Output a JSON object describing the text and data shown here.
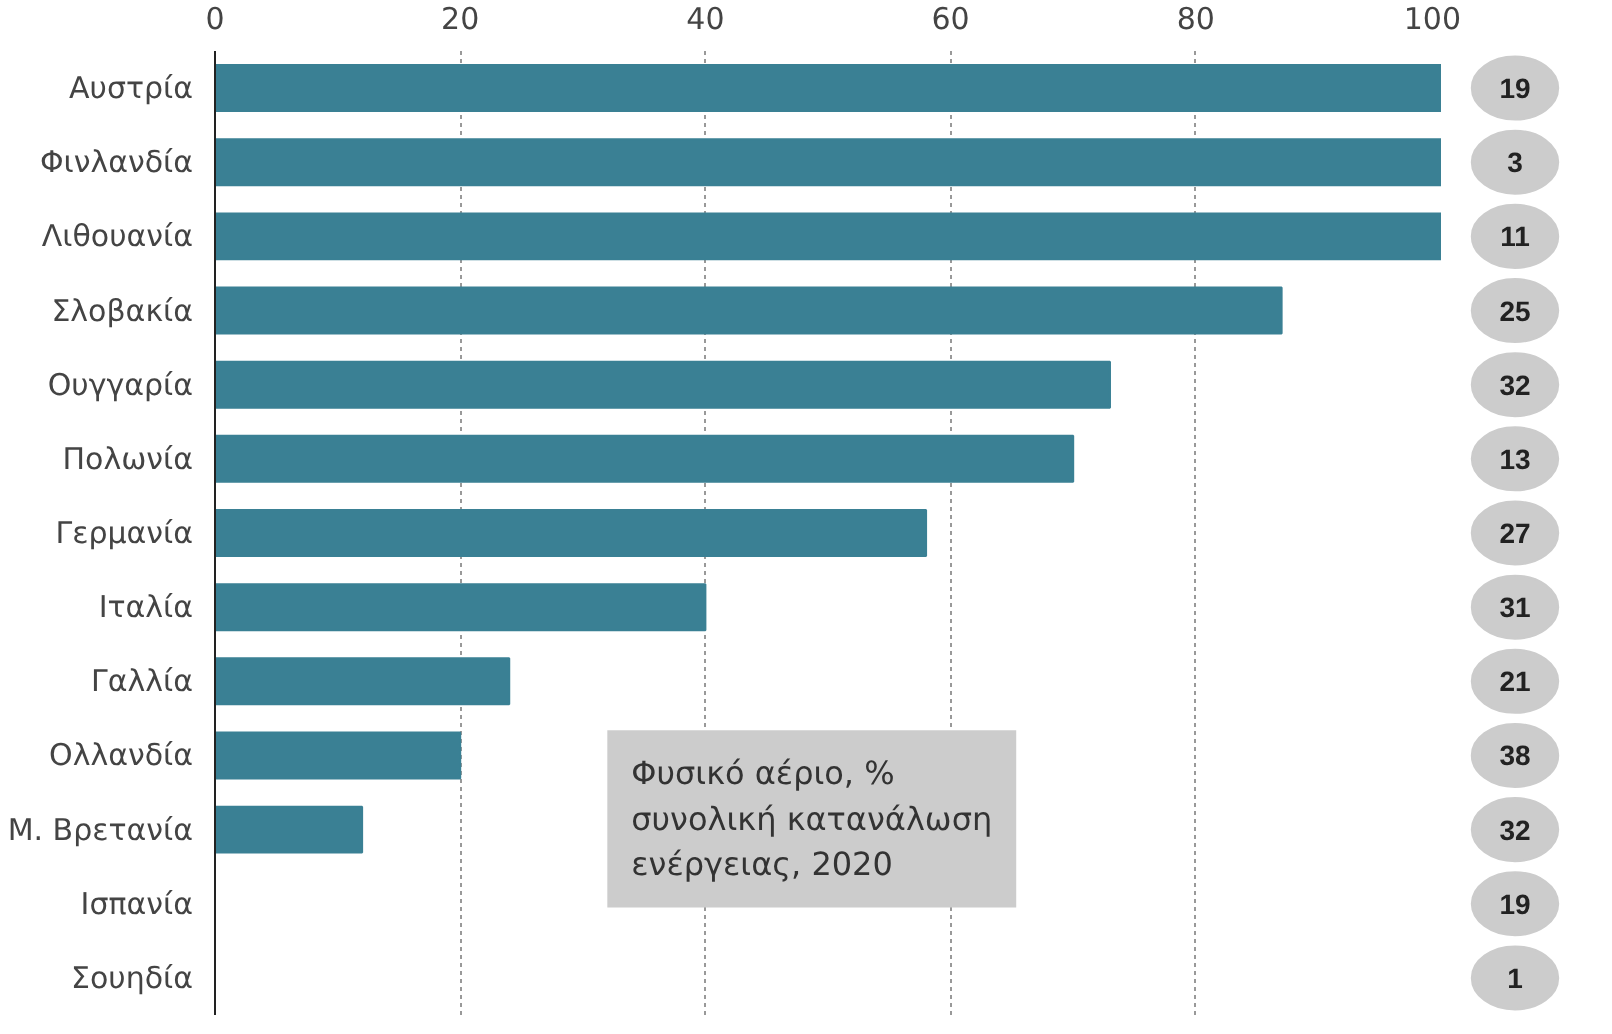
{
  "chart_data": {
    "type": "bar",
    "orientation": "horizontal",
    "categories": [
      "Αυστρία",
      "Φινλανδία",
      "Λιθουανία",
      "Σλοβακία",
      "Ουγγαρία",
      "Πολωνία",
      "Γερμανία",
      "Ιταλία",
      "Γαλλία",
      "Ολλανδία",
      "Μ. Βρετανία",
      "Ισπανία",
      "Σουηδία"
    ],
    "values": [
      100,
      100,
      100,
      87,
      73,
      70,
      58,
      40,
      24,
      20,
      12,
      0,
      0
    ],
    "color": "#3a8094",
    "xlim": [
      0,
      100
    ],
    "xticks": [
      0,
      20,
      40,
      60,
      80,
      100
    ],
    "grid": "x",
    "annotations": [
      "19",
      "3",
      "11",
      "25",
      "32",
      "13",
      "27",
      "31",
      "21",
      "38",
      "32",
      "19",
      "1",
      "Φυσικό αέριο, %\nσυνολική κατανάλωση\nενέργειας, 2020"
    ]
  }
}
